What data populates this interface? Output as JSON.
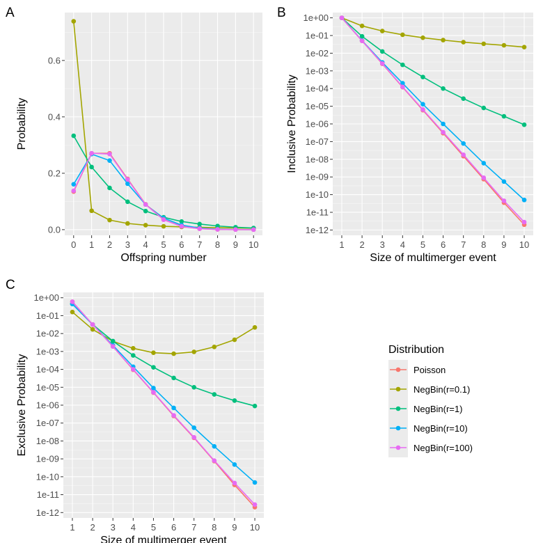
{
  "legend": {
    "title": "Distribution",
    "entries": [
      {
        "name": "Poisson",
        "color": "#F8766D"
      },
      {
        "name": "NegBin(r=0.1)",
        "color": "#A3A500"
      },
      {
        "name": "NegBin(r=1)",
        "color": "#00BF7D"
      },
      {
        "name": "NegBin(r=10)",
        "color": "#00B0F6"
      },
      {
        "name": "NegBin(r=100)",
        "color": "#E76BF3"
      }
    ]
  },
  "chart_data": [
    {
      "panel": "A",
      "type": "line",
      "xlabel": "Offspring number",
      "ylabel": "Probability",
      "x": [
        0,
        1,
        2,
        3,
        4,
        5,
        6,
        7,
        8,
        9,
        10
      ],
      "xticks": [
        "0",
        "1",
        "2",
        "3",
        "4",
        "5",
        "6",
        "7",
        "8",
        "9",
        "10"
      ],
      "yscale": "linear",
      "ylim": [
        -0.02,
        0.77
      ],
      "yticks": [
        0.0,
        0.2,
        0.4,
        0.6
      ],
      "ytick_labels": [
        "0.0",
        "0.2",
        "0.4",
        "0.6"
      ],
      "series": [
        {
          "name": "Poisson",
          "values": [
            0.135,
            0.271,
            0.271,
            0.18,
            0.09,
            0.036,
            0.012,
            0.0034,
            0.00086,
            0.00019,
            4e-05
          ]
        },
        {
          "name": "NegBin(r=0.1)",
          "values": [
            0.739,
            0.067,
            0.034,
            0.022,
            0.016,
            0.012,
            0.0098,
            0.0082,
            0.0069,
            0.0059,
            0.0051
          ]
        },
        {
          "name": "NegBin(r=1)",
          "values": [
            0.333,
            0.222,
            0.148,
            0.099,
            0.066,
            0.044,
            0.029,
            0.02,
            0.013,
            0.0087,
            0.0058
          ]
        },
        {
          "name": "NegBin(r=10)",
          "values": [
            0.161,
            0.268,
            0.245,
            0.163,
            0.089,
            0.041,
            0.016,
            0.0057,
            0.0018,
            0.0005,
            0.00013
          ]
        },
        {
          "name": "NegBin(r=100)",
          "values": [
            0.138,
            0.271,
            0.268,
            0.178,
            0.089,
            0.035,
            0.0117,
            0.0033,
            0.00082,
            0.00018,
            4e-05
          ]
        }
      ]
    },
    {
      "panel": "B",
      "type": "line",
      "xlabel": "Size of multimerger event",
      "ylabel": "Inclusive Probability",
      "x": [
        1,
        2,
        3,
        4,
        5,
        6,
        7,
        8,
        9,
        10
      ],
      "xticks": [
        "1",
        "2",
        "3",
        "4",
        "5",
        "6",
        "7",
        "8",
        "9",
        "10"
      ],
      "yscale": "log10",
      "ylim_log10": [
        -12.3,
        0.3
      ],
      "yticks_log10": [
        0,
        -1,
        -2,
        -3,
        -4,
        -5,
        -6,
        -7,
        -8,
        -9,
        -10,
        -11,
        -12
      ],
      "ytick_labels": [
        "1e+00",
        "1e-01",
        "1e-02",
        "1e-03",
        "1e-04",
        "1e-05",
        "1e-06",
        "1e-07",
        "1e-08",
        "1e-09",
        "1e-10",
        "1e-11",
        "1e-12"
      ],
      "series": [
        {
          "name": "Poisson",
          "values": [
            1,
            0.0498,
            0.0025,
            0.00012,
            6e-06,
            3e-07,
            1.5e-08,
            7.5e-10,
            3.5e-11,
            2e-12
          ]
        },
        {
          "name": "NegBin(r=0.1)",
          "values": [
            1,
            0.35,
            0.18,
            0.11,
            0.075,
            0.055,
            0.042,
            0.034,
            0.028,
            0.022
          ]
        },
        {
          "name": "NegBin(r=1)",
          "values": [
            1,
            0.09,
            0.0125,
            0.0022,
            0.00045,
            0.0001,
            2.7e-05,
            8e-06,
            2.7e-06,
            9e-07
          ]
        },
        {
          "name": "NegBin(r=10)",
          "values": [
            1,
            0.052,
            0.003,
            0.0002,
            1.3e-05,
            1e-06,
            7.8e-08,
            6e-09,
            5.5e-10,
            5e-11
          ]
        },
        {
          "name": "NegBin(r=100)",
          "values": [
            1,
            0.05,
            0.0026,
            0.000125,
            6.5e-06,
            3.4e-07,
            1.8e-08,
            9e-10,
            4.5e-11,
            2.8e-12
          ]
        }
      ]
    },
    {
      "panel": "C",
      "type": "line",
      "xlabel": "Size of multimerger event",
      "ylabel": "Exclusive Probability",
      "x": [
        1,
        2,
        3,
        4,
        5,
        6,
        7,
        8,
        9,
        10
      ],
      "xticks": [
        "1",
        "2",
        "3",
        "4",
        "5",
        "6",
        "7",
        "8",
        "9",
        "10"
      ],
      "yscale": "log10",
      "ylim_log10": [
        -12.3,
        0.3
      ],
      "yticks_log10": [
        0,
        -1,
        -2,
        -3,
        -4,
        -5,
        -6,
        -7,
        -8,
        -9,
        -10,
        -11,
        -12
      ],
      "ytick_labels": [
        "1e+00",
        "1e-01",
        "1e-02",
        "1e-03",
        "1e-04",
        "1e-05",
        "1e-06",
        "1e-07",
        "1e-08",
        "1e-09",
        "1e-10",
        "1e-11",
        "1e-12"
      ],
      "series": [
        {
          "name": "Poisson",
          "values": [
            0.6,
            0.032,
            0.0019,
            9.5e-05,
            5e-06,
            2.5e-07,
            1.5e-08,
            7.5e-10,
            3.5e-11,
            2e-12
          ]
        },
        {
          "name": "NegBin(r=0.1)",
          "values": [
            0.16,
            0.017,
            0.0037,
            0.0015,
            0.00085,
            0.00075,
            0.00095,
            0.0018,
            0.0045,
            0.022
          ]
        },
        {
          "name": "NegBin(r=1)",
          "values": [
            0.45,
            0.032,
            0.0038,
            0.0006,
            0.00013,
            3.3e-05,
            1e-05,
            4e-06,
            1.8e-06,
            9e-07
          ]
        },
        {
          "name": "NegBin(r=10)",
          "values": [
            0.45,
            0.032,
            0.0022,
            0.00014,
            9e-06,
            7e-07,
            5.5e-08,
            5e-09,
            4.8e-10,
            4.8e-11
          ]
        },
        {
          "name": "NegBin(r=100)",
          "values": [
            0.6,
            0.032,
            0.0019,
            0.0001,
            5.2e-06,
            2.7e-07,
            1.6e-08,
            8e-10,
            4.5e-11,
            2.8e-12
          ]
        }
      ]
    }
  ]
}
